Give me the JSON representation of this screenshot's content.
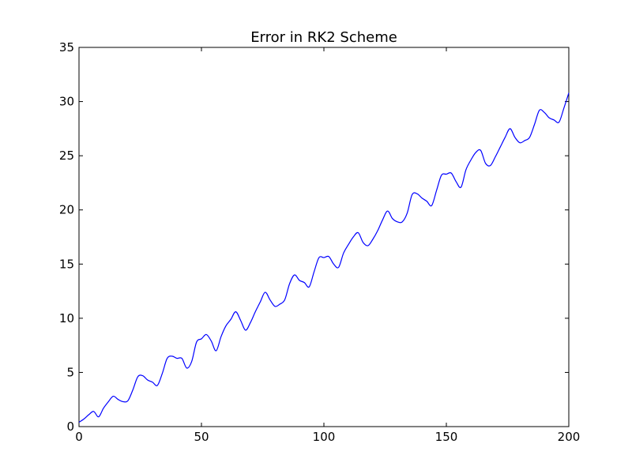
{
  "chart_data": {
    "type": "line",
    "title": "Error in RK2 Scheme",
    "xlabel": "",
    "ylabel": "",
    "xlim": [
      0,
      200
    ],
    "ylim": [
      0,
      35
    ],
    "xticks": [
      0,
      50,
      100,
      150,
      200
    ],
    "yticks": [
      0,
      5,
      10,
      15,
      20,
      25,
      30,
      35
    ],
    "xtick_labels": [
      "0",
      "50",
      "100",
      "150",
      "200"
    ],
    "ytick_labels": [
      "0",
      "5",
      "10",
      "15",
      "20",
      "25",
      "30",
      "35"
    ],
    "grid": false,
    "legend": "none",
    "colors": {
      "line": "#0000ff",
      "axes": "#000000",
      "background": "#ffffff"
    },
    "series": [
      {
        "x": [
          0,
          2,
          4,
          6,
          8,
          10,
          12,
          14,
          16,
          18,
          20,
          22,
          24,
          26,
          28,
          30,
          32,
          34,
          36,
          38,
          40,
          42,
          44,
          46,
          48,
          50,
          52,
          54,
          56,
          58,
          60,
          62,
          64,
          66,
          68,
          70,
          72,
          74,
          76,
          78,
          80,
          82,
          84,
          86,
          88,
          90,
          92,
          94,
          96,
          98,
          100,
          102,
          104,
          106,
          108,
          110,
          112,
          114,
          116,
          118,
          120,
          122,
          124,
          126,
          128,
          130,
          132,
          134,
          136,
          138,
          140,
          142,
          144,
          146,
          148,
          150,
          152,
          154,
          156,
          158,
          160,
          162,
          164,
          166,
          168,
          170,
          172,
          174,
          176,
          178,
          180,
          182,
          184,
          186,
          188,
          190,
          192,
          194,
          196,
          198,
          200
        ],
        "y": [
          0.4,
          0.7,
          1.1,
          1.4,
          0.9,
          1.7,
          2.3,
          2.8,
          2.5,
          2.3,
          2.4,
          3.4,
          4.6,
          4.7,
          4.3,
          4.1,
          3.8,
          4.9,
          6.3,
          6.5,
          6.3,
          6.3,
          5.4,
          6.0,
          7.8,
          8.1,
          8.5,
          7.9,
          7.0,
          8.3,
          9.3,
          9.9,
          10.6,
          9.8,
          8.9,
          9.6,
          10.6,
          11.5,
          12.4,
          11.7,
          11.1,
          11.3,
          11.7,
          13.2,
          14.0,
          13.5,
          13.3,
          12.9,
          14.3,
          15.6,
          15.6,
          15.7,
          15.0,
          14.7,
          16.0,
          16.8,
          17.5,
          17.9,
          17.0,
          16.7,
          17.3,
          18.1,
          19.1,
          19.9,
          19.2,
          18.9,
          18.9,
          19.7,
          21.4,
          21.5,
          21.1,
          20.8,
          20.4,
          21.8,
          23.2,
          23.3,
          23.4,
          22.6,
          22.1,
          23.7,
          24.6,
          25.3,
          25.5,
          24.3,
          24.1,
          24.9,
          25.8,
          26.7,
          27.5,
          26.7,
          26.2,
          26.4,
          26.7,
          27.9,
          29.2,
          29.0,
          28.5,
          28.3,
          28.1,
          29.4,
          30.8
        ]
      }
    ]
  }
}
